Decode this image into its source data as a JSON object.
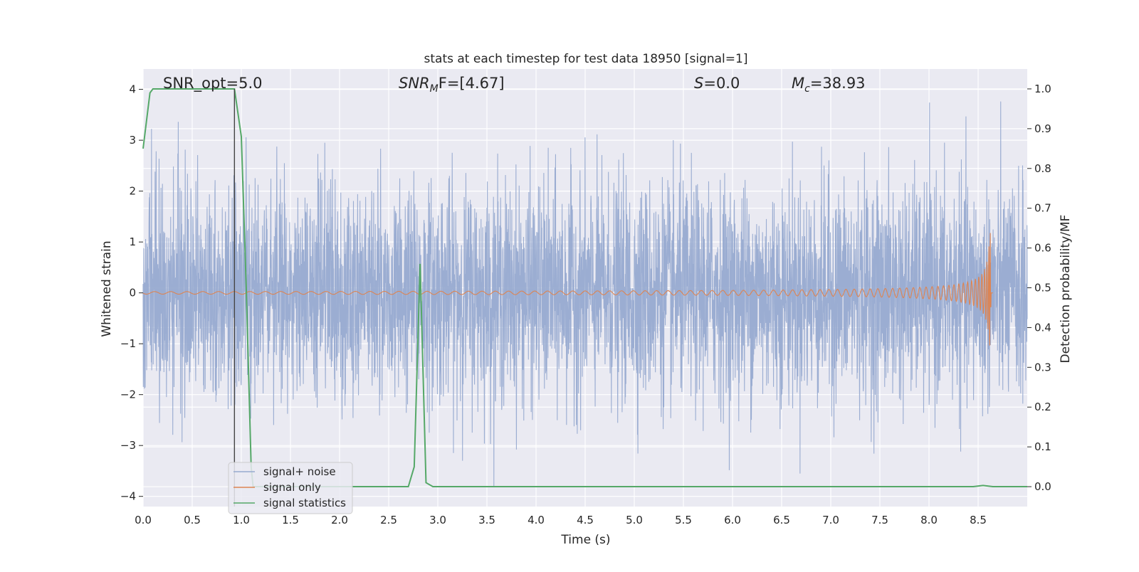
{
  "chart_data": {
    "type": "line",
    "title": "stats at each timestep for test data 18950 [signal=1]",
    "xlabel": "Time (s)",
    "ylabel": "Whitened strain",
    "ylabel_right": "Detection probability/MF",
    "xlim": [
      0.0,
      9.0
    ],
    "ylim": [
      -4.2,
      4.4
    ],
    "ylim_right": [
      -0.05,
      1.05
    ],
    "xticks": [
      "0.0",
      "0.5",
      "1.0",
      "1.5",
      "2.0",
      "2.5",
      "3.0",
      "3.5",
      "4.0",
      "4.5",
      "5.0",
      "5.5",
      "6.0",
      "6.5",
      "7.0",
      "7.5",
      "8.0",
      "8.5"
    ],
    "yticks": [
      "4",
      "3",
      "2",
      "1",
      "0",
      "−1",
      "−2",
      "−3",
      "−4"
    ],
    "yticks_right": [
      "1.0",
      "0.9",
      "0.8",
      "0.7",
      "0.6",
      "0.5",
      "0.4",
      "0.3",
      "0.2",
      "0.1",
      "0.0"
    ],
    "grid": true,
    "legend_position": "lower-left",
    "annotations": {
      "snr_opt": "SNR_opt=5.0",
      "snr_mf_label": "SNR",
      "snr_mf_sub": "M",
      "snr_mf_value": "F=[4.67]",
      "s_label": "S",
      "s_value": "=0.0",
      "mc_label": "M",
      "mc_sub": "c",
      "mc_value": "=38.93"
    },
    "vertical_marker_x": 0.93,
    "series": [
      {
        "name": "signal+ noise",
        "color": "#97aad0",
        "axis": "left",
        "description": "whitened strain, sampled noise spanning roughly -3.8 to 4.0",
        "x_range": [
          0.0,
          9.0
        ],
        "approx_amplitude": 2.3,
        "peak_abs": 4.0
      },
      {
        "name": "signal only",
        "color": "#dd8452",
        "axis": "left",
        "description": "chirp growing from ~0 to peak amplitude ~1.4 at merger",
        "x_range": [
          0.0,
          8.65
        ],
        "merger_time": 8.63,
        "peak_amplitude": 1.35
      },
      {
        "name": "signal statistics",
        "color": "#55a868",
        "axis": "right",
        "x": [
          0.0,
          0.07,
          0.1,
          0.15,
          0.2,
          0.3,
          0.5,
          0.7,
          0.9,
          0.93,
          1.0,
          1.05,
          1.1,
          1.12,
          1.2,
          1.3,
          2.0,
          2.5,
          2.7,
          2.76,
          2.82,
          2.88,
          2.95,
          3.0,
          4.0,
          6.0,
          8.0,
          8.45,
          8.55,
          8.65,
          9.0
        ],
        "y": [
          0.85,
          0.99,
          1.0,
          1.0,
          1.0,
          1.0,
          1.0,
          1.0,
          1.0,
          1.0,
          0.88,
          0.5,
          0.05,
          0.0,
          0.0,
          0.0,
          0.0,
          0.0,
          0.0,
          0.05,
          0.56,
          0.01,
          0.0,
          0.0,
          0.0,
          0.0,
          0.0,
          0.0,
          0.003,
          0.0,
          0.0
        ]
      }
    ]
  }
}
